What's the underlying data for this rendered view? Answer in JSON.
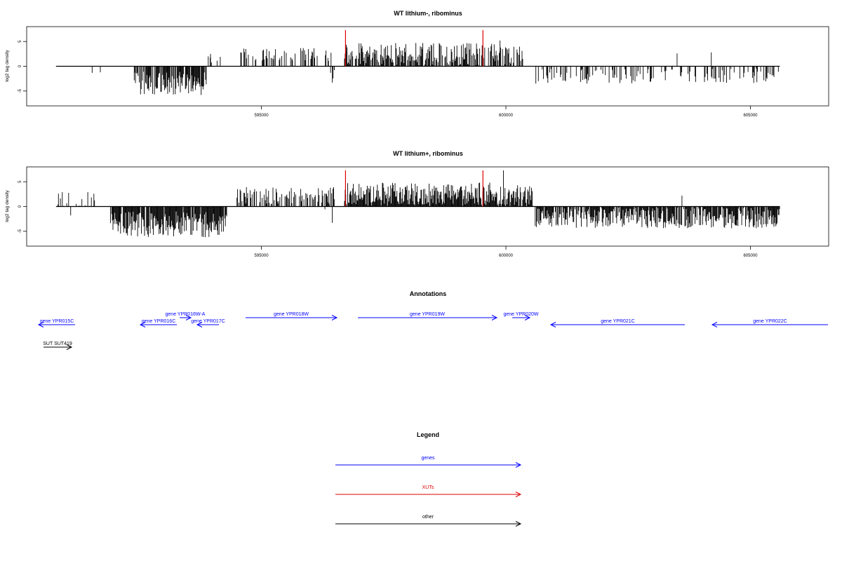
{
  "chart_data": [
    {
      "type": "bar",
      "title": "WT lithium-, ribominus",
      "xlabel": "",
      "ylabel": "log2 tag density",
      "xlim": [
        590200,
        606600
      ],
      "ylim": [
        -8,
        8
      ],
      "x_ticks": [
        595000,
        600000,
        605000
      ],
      "x_tick_labels": [
        "595000",
        "600000",
        "605000"
      ],
      "y_ticks": [
        5,
        0,
        -5
      ],
      "y_tick_labels": [
        "5",
        "0",
        "-5"
      ],
      "grid": false,
      "baseline": {
        "from": 590800,
        "to": 605600,
        "y": 0
      },
      "markers": {
        "color": "#dd0000",
        "x": [
          596720,
          599530
        ],
        "y": 7.3
      },
      "segments": [
        {
          "from": 591500,
          "to": 591800,
          "density": 0.15,
          "mean": -1.6,
          "spread": 0.5,
          "seed": 11
        },
        {
          "from": 592400,
          "to": 593900,
          "density": 0.85,
          "mean": -3.4,
          "spread": 2.4,
          "seed": 12
        },
        {
          "from": 593900,
          "to": 594200,
          "density": 0.2,
          "mean": 1.8,
          "spread": 1.2,
          "seed": 13
        },
        {
          "from": 594500,
          "to": 596450,
          "density": 0.35,
          "mean": 2.3,
          "spread": 1.4,
          "seed": 14
        },
        {
          "from": 596350,
          "to": 596500,
          "density": 0.3,
          "mean": -1.6,
          "spread": 1.6,
          "seed": 15
        },
        {
          "from": 596700,
          "to": 599800,
          "density": 0.75,
          "mean": 2.3,
          "spread": 2.4,
          "seed": 16
        },
        {
          "from": 599800,
          "to": 600350,
          "density": 0.6,
          "mean": 2.4,
          "spread": 2.0,
          "seed": 17
        },
        {
          "from": 600600,
          "to": 605600,
          "density": 0.3,
          "mean": -2.0,
          "spread": 1.5,
          "seed": 18
        }
      ],
      "spikes": [
        {
          "x": 593960,
          "y": 2.5
        },
        {
          "x": 596450,
          "y": -3.3
        },
        {
          "x": 603500,
          "y": 2.6
        },
        {
          "x": 604200,
          "y": 2.8
        },
        {
          "x": 599880,
          "y": 5.2
        }
      ]
    },
    {
      "type": "bar",
      "title": "WT lithium+, ribominus",
      "xlabel": "",
      "ylabel": "log2 tag density",
      "xlim": [
        590200,
        606600
      ],
      "ylim": [
        -8,
        8
      ],
      "x_ticks": [
        595000,
        600000,
        605000
      ],
      "x_tick_labels": [
        "595000",
        "600000",
        "605000"
      ],
      "y_ticks": [
        5,
        0,
        -5
      ],
      "y_tick_labels": [
        "5",
        "0",
        "-5"
      ],
      "grid": false,
      "baseline": {
        "from": 590800,
        "to": 605600,
        "y": 0
      },
      "markers": {
        "color": "#dd0000",
        "x": [
          596720,
          599530
        ],
        "y": 7.3
      },
      "segments": [
        {
          "from": 590800,
          "to": 591700,
          "density": 0.35,
          "mean": 0.6,
          "spread": 2.5,
          "seed": 21
        },
        {
          "from": 591900,
          "to": 594300,
          "density": 0.95,
          "mean": -3.6,
          "spread": 2.6,
          "seed": 22
        },
        {
          "from": 594500,
          "to": 596500,
          "density": 0.55,
          "mean": 2.2,
          "spread": 1.7,
          "seed": 23
        },
        {
          "from": 596300,
          "to": 596550,
          "density": 0.3,
          "mean": -1.5,
          "spread": 1.5,
          "seed": 24
        },
        {
          "from": 596700,
          "to": 599800,
          "density": 1.0,
          "mean": 2.4,
          "spread": 2.5,
          "seed": 25
        },
        {
          "from": 599800,
          "to": 600550,
          "density": 0.8,
          "mean": 2.2,
          "spread": 2.2,
          "seed": 26
        },
        {
          "from": 600600,
          "to": 605600,
          "density": 0.85,
          "mean": -2.3,
          "spread": 2.1,
          "seed": 27
        }
      ],
      "spikes": [
        {
          "x": 590850,
          "y": 2.6
        },
        {
          "x": 591450,
          "y": 2.9
        },
        {
          "x": 596450,
          "y": -3.3
        },
        {
          "x": 599950,
          "y": 7.3
        },
        {
          "x": 603600,
          "y": 2.2
        },
        {
          "x": 591100,
          "y": -1.8
        }
      ]
    }
  ],
  "annotations": {
    "title": "Annotations",
    "genes": [
      {
        "label": "gene YPR015C",
        "x1": 55,
        "x2": 107,
        "y": 463,
        "dir": "left"
      },
      {
        "label": "gene YPR016C",
        "x1": 200,
        "x2": 252,
        "y": 463,
        "dir": "left"
      },
      {
        "label": "gene YPR016W-A",
        "x1": 256,
        "x2": 272,
        "y": 453,
        "dir": "right"
      },
      {
        "label": "gene YPR017C",
        "x1": 281,
        "x2": 312,
        "y": 463,
        "dir": "left"
      },
      {
        "label": "gene YPR018W",
        "x1": 350,
        "x2": 480,
        "y": 453,
        "dir": "right"
      },
      {
        "label": "gene YPR019W",
        "x1": 510,
        "x2": 708,
        "y": 453,
        "dir": "right"
      },
      {
        "label": "gene YPR020W",
        "x1": 730,
        "x2": 755,
        "y": 453,
        "dir": "right"
      },
      {
        "label": "gene YPR021C",
        "x1": 785,
        "x2": 976,
        "y": 463,
        "dir": "left"
      },
      {
        "label": "gene YPR022C",
        "x1": 1015,
        "x2": 1180,
        "y": 463,
        "dir": "left"
      }
    ],
    "other": [
      {
        "label": "SUT SUT419",
        "x1": 62,
        "x2": 102,
        "y": 495,
        "dir": "right"
      }
    ]
  },
  "legend": {
    "title": "Legend",
    "items": [
      {
        "label": "genes",
        "color": "#0000ff"
      },
      {
        "label": "XUTs",
        "color": "#dd0000"
      },
      {
        "label": "other",
        "color": "#000000"
      }
    ]
  },
  "colors": {
    "genes": "#0000ff",
    "xuts": "#dd0000",
    "other": "#000000"
  }
}
